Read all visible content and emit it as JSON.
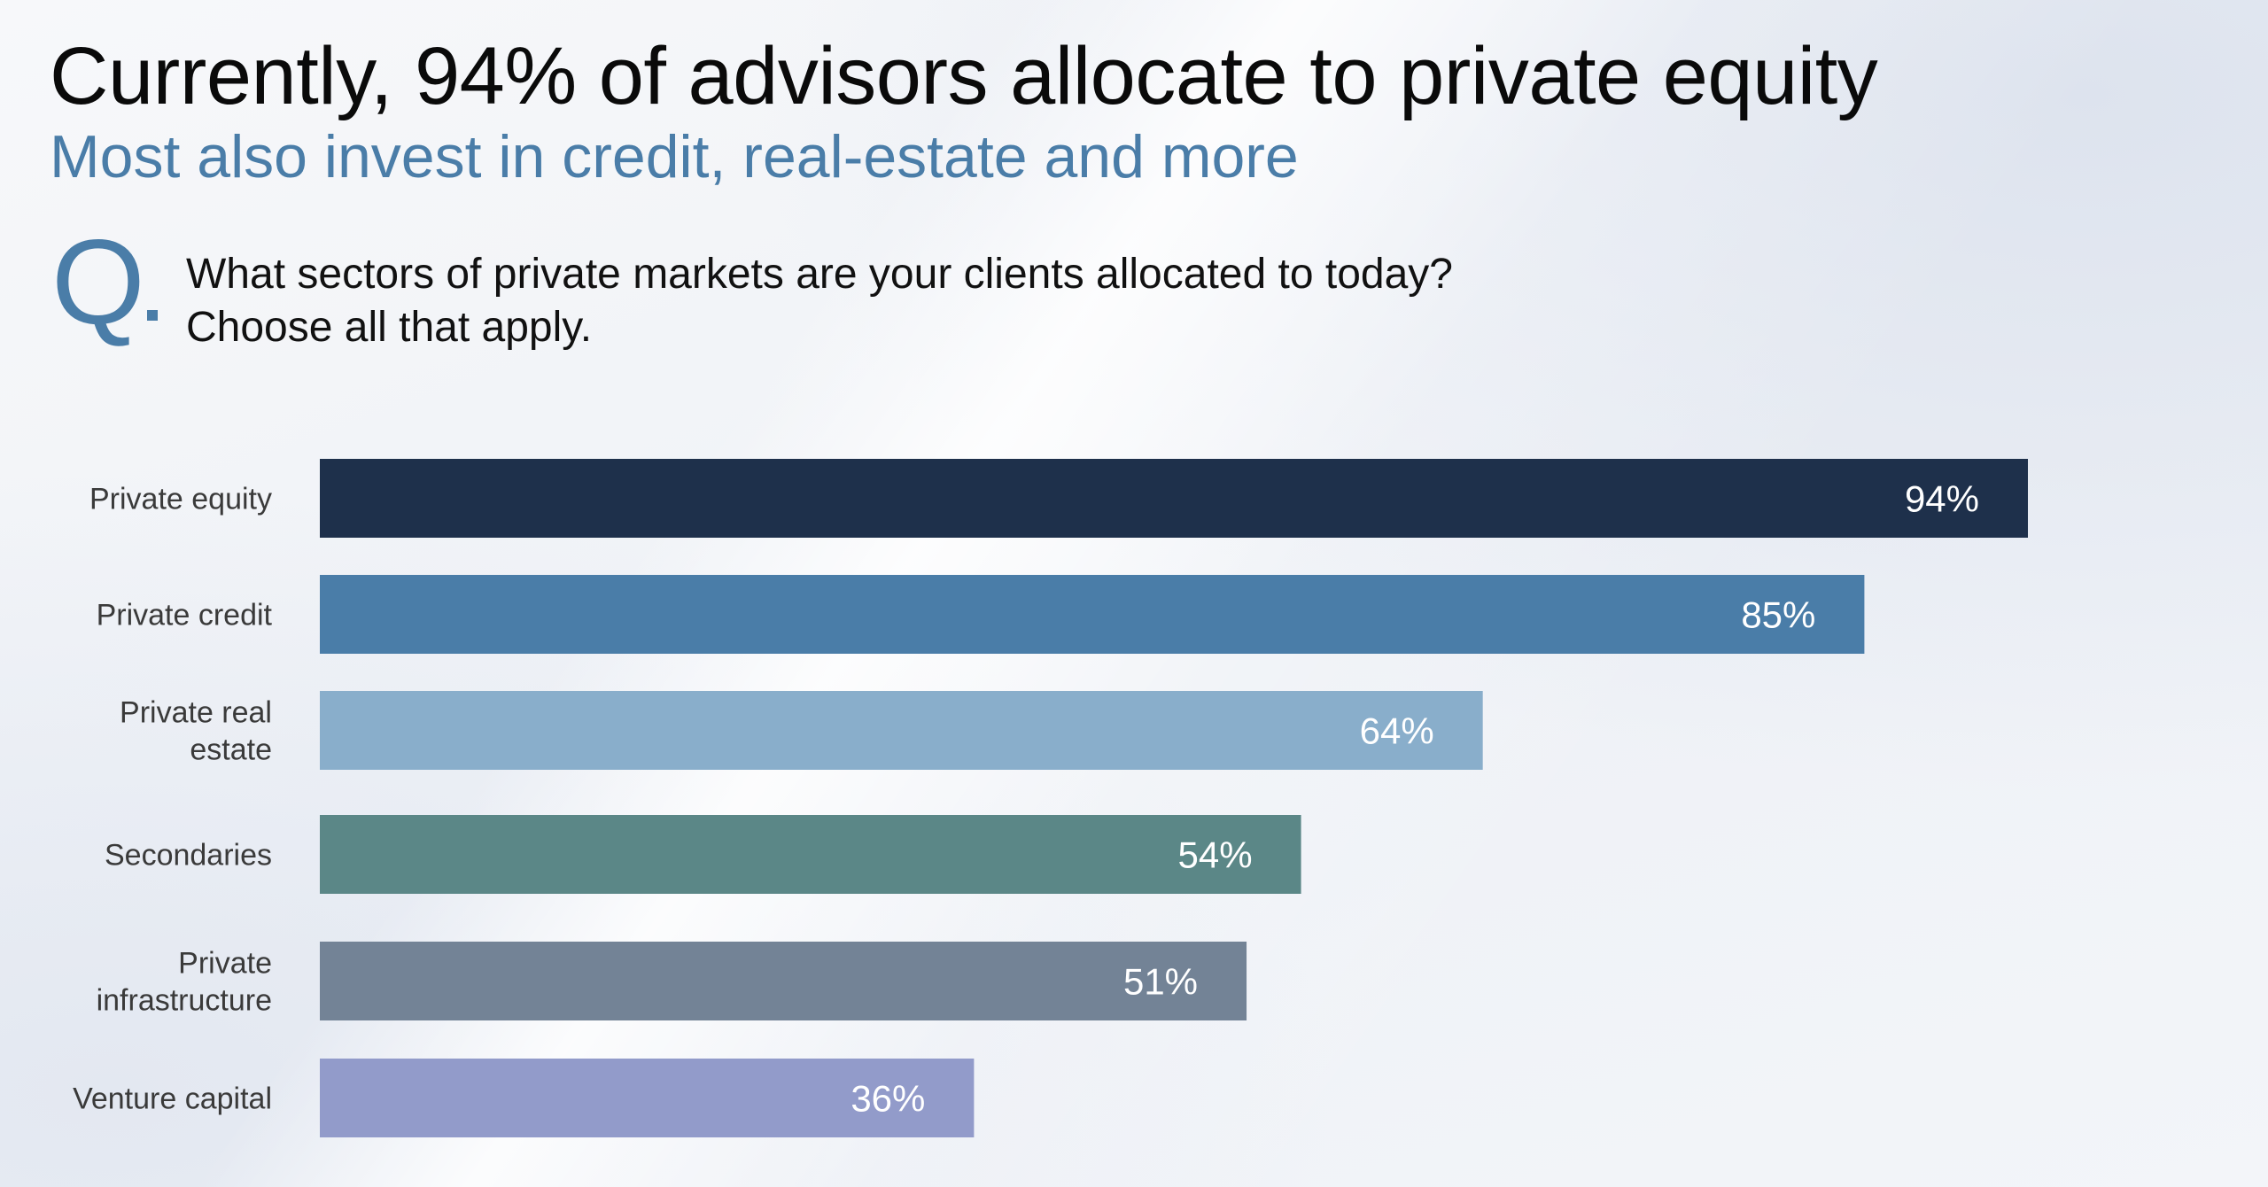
{
  "header": {
    "title": "Currently, 94% of advisors allocate to private equity",
    "subtitle": "Most also invest in credit, real-estate and more"
  },
  "question": {
    "marker": "Q",
    "line1": "What sectors of private markets are your clients allocated to today?",
    "line2": "Choose all that apply."
  },
  "chart_data": {
    "type": "bar",
    "orientation": "horizontal",
    "categories": [
      "Private equity",
      "Private credit",
      "Private real estate",
      "Secondaries",
      "Private infrastructure",
      "Venture capital"
    ],
    "category_lines": [
      [
        "Private equity"
      ],
      [
        "Private credit"
      ],
      [
        "Private real",
        "estate"
      ],
      [
        "Secondaries"
      ],
      [
        "Private",
        "infrastructure"
      ],
      [
        "Venture capital"
      ]
    ],
    "values": [
      94,
      85,
      64,
      54,
      51,
      36
    ],
    "value_labels": [
      "94%",
      "85%",
      "64%",
      "54%",
      "51%",
      "36%"
    ],
    "colors": [
      "#1e304b",
      "#4a7da8",
      "#89aecb",
      "#5b8787",
      "#738396",
      "#929bca"
    ],
    "xlim": [
      0,
      100
    ],
    "unit": "%",
    "grid": false,
    "legend": "none"
  }
}
